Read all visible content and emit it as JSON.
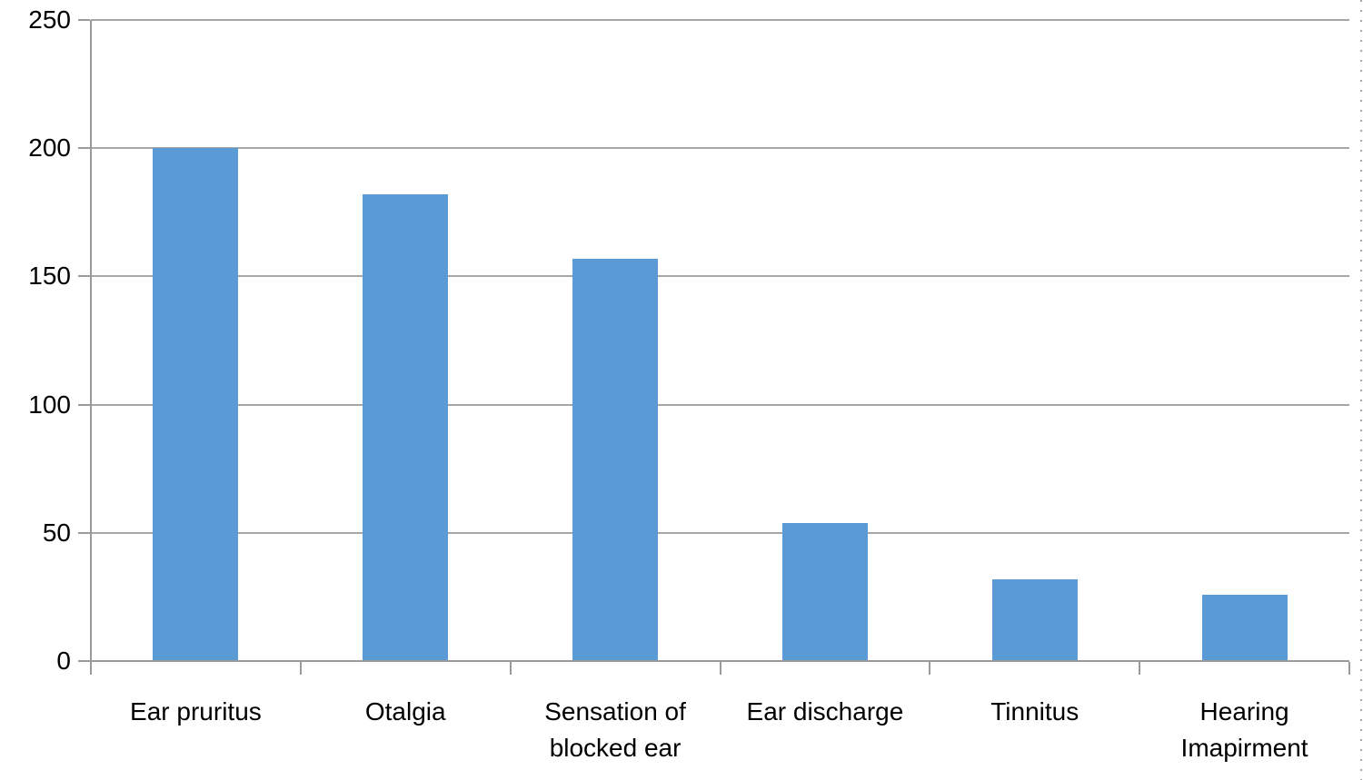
{
  "chart_data": {
    "type": "bar",
    "title": "",
    "xlabel": "",
    "ylabel": "",
    "categories": [
      "Ear pruritus",
      "Otalgia",
      "Sensation of blocked ear",
      "Ear discharge",
      "Tinnitus",
      "Hearing Imapirment"
    ],
    "values": [
      200,
      182,
      157,
      54,
      32,
      26
    ],
    "ylim": [
      0,
      250
    ],
    "yticks": [
      0,
      50,
      100,
      150,
      200,
      250
    ],
    "grid": true,
    "legend_position": "none",
    "bar_color": "#5b9bd5",
    "gridline_color": "#a6a6a6",
    "axis_color": "#9a9a9a",
    "text_color": "#000000",
    "selection_edge_color": "#a9a9a9"
  }
}
